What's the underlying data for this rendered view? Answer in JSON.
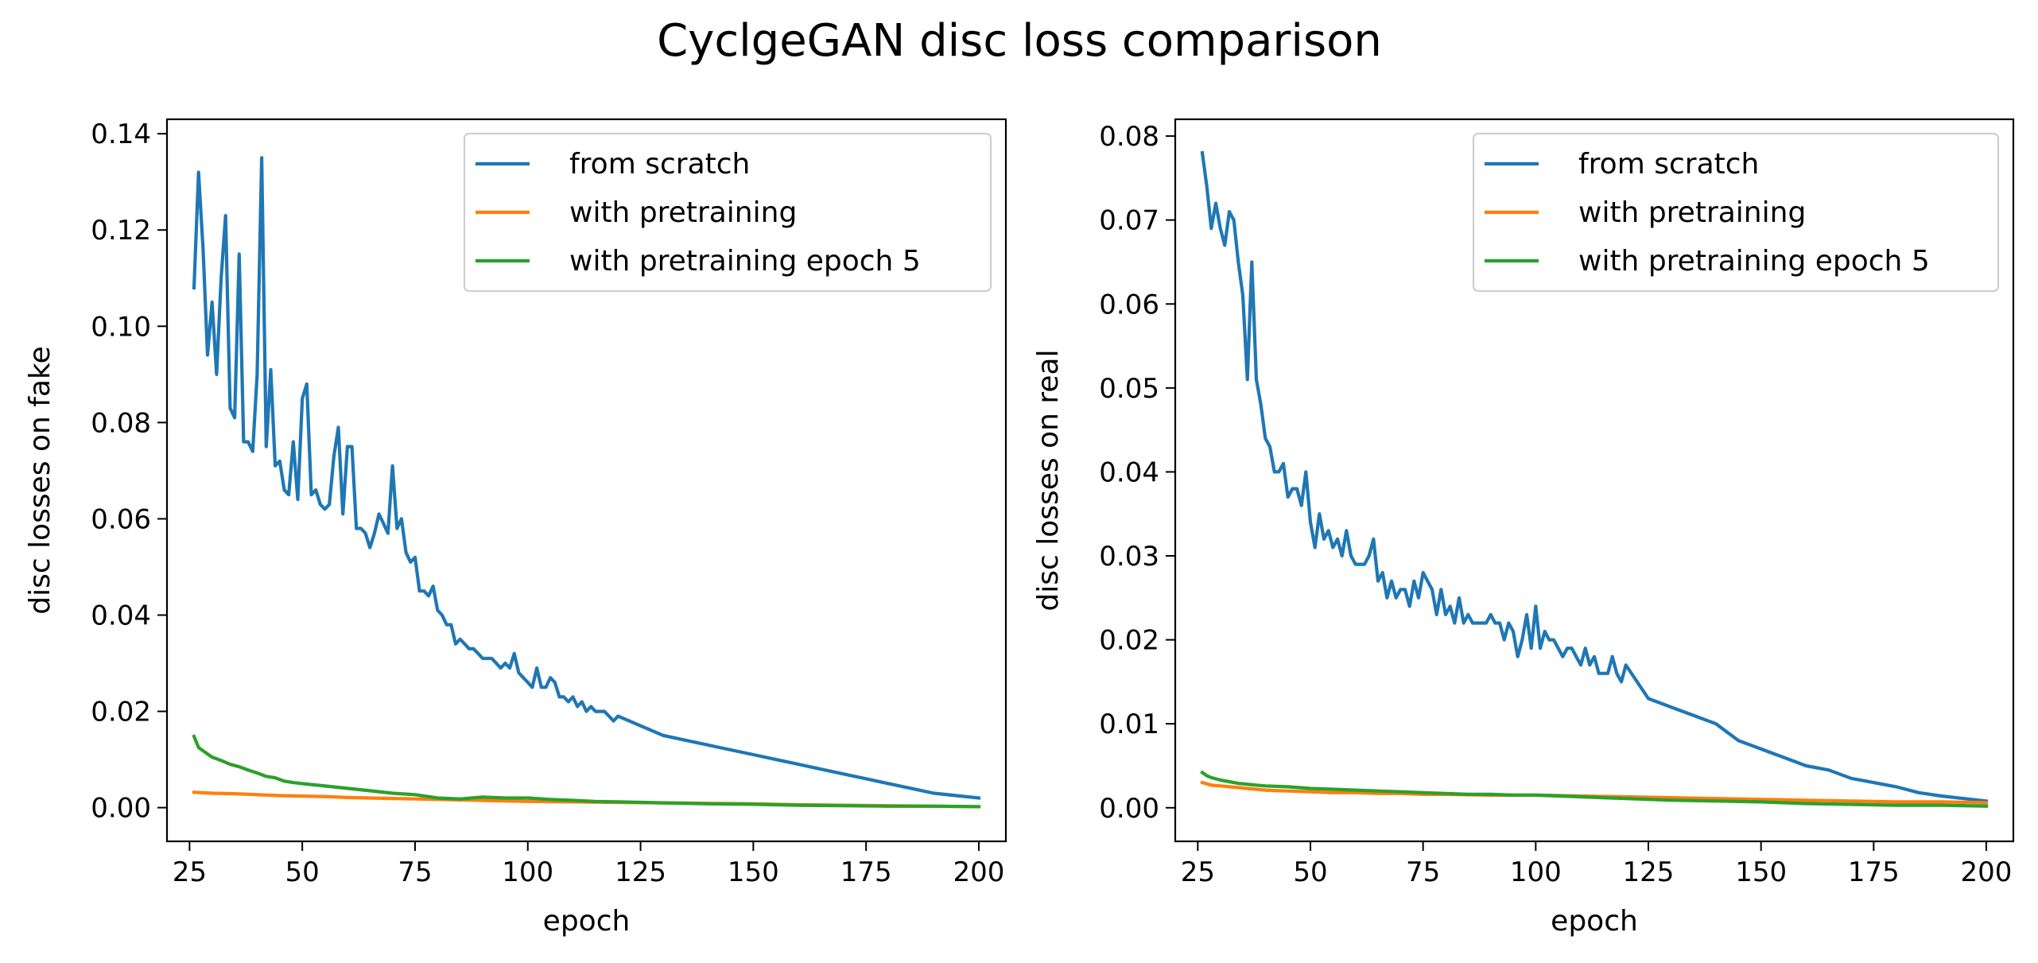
{
  "suptitle": "CyclgeGAN disc loss comparison",
  "chart_data": [
    {
      "type": "line",
      "title": "",
      "xlabel": "epoch",
      "ylabel": "disc losses on fake",
      "xlim": [
        20,
        206
      ],
      "ylim": [
        -0.007,
        0.143
      ],
      "xticks": [
        25,
        50,
        75,
        100,
        125,
        150,
        175,
        200
      ],
      "yticks": [
        0.0,
        0.02,
        0.04,
        0.06,
        0.08,
        0.1,
        0.12,
        0.14
      ],
      "ytick_labels": [
        "0.00",
        "0.02",
        "0.04",
        "0.06",
        "0.08",
        "0.10",
        "0.12",
        "0.14"
      ],
      "legend": "top-right",
      "grid": false,
      "series": [
        {
          "name": "from scratch",
          "color": "#1f77b4",
          "x": [
            26,
            27,
            28,
            29,
            30,
            31,
            32,
            33,
            34,
            35,
            36,
            37,
            38,
            39,
            40,
            41,
            42,
            43,
            44,
            45,
            46,
            47,
            48,
            49,
            50,
            51,
            52,
            53,
            54,
            55,
            56,
            57,
            58,
            59,
            60,
            61,
            62,
            63,
            64,
            65,
            66,
            67,
            68,
            69,
            70,
            71,
            72,
            73,
            74,
            75,
            76,
            77,
            78,
            79,
            80,
            81,
            82,
            83,
            84,
            85,
            86,
            87,
            88,
            89,
            90,
            91,
            92,
            93,
            94,
            95,
            96,
            97,
            98,
            99,
            100,
            101,
            102,
            103,
            104,
            105,
            106,
            107,
            108,
            109,
            110,
            111,
            112,
            113,
            114,
            115,
            116,
            117,
            118,
            119,
            120,
            125,
            130,
            135,
            140,
            145,
            150,
            155,
            160,
            165,
            170,
            175,
            180,
            185,
            190,
            195,
            200
          ],
          "y": [
            0.108,
            0.132,
            0.116,
            0.094,
            0.105,
            0.09,
            0.11,
            0.123,
            0.083,
            0.081,
            0.115,
            0.076,
            0.076,
            0.074,
            0.09,
            0.135,
            0.075,
            0.091,
            0.071,
            0.072,
            0.066,
            0.065,
            0.076,
            0.064,
            0.085,
            0.088,
            0.065,
            0.066,
            0.063,
            0.062,
            0.063,
            0.073,
            0.079,
            0.061,
            0.075,
            0.075,
            0.058,
            0.058,
            0.057,
            0.054,
            0.057,
            0.061,
            0.059,
            0.057,
            0.071,
            0.058,
            0.06,
            0.053,
            0.051,
            0.052,
            0.045,
            0.045,
            0.044,
            0.046,
            0.041,
            0.04,
            0.038,
            0.038,
            0.034,
            0.035,
            0.034,
            0.033,
            0.033,
            0.032,
            0.031,
            0.031,
            0.031,
            0.03,
            0.029,
            0.03,
            0.029,
            0.032,
            0.028,
            0.027,
            0.026,
            0.025,
            0.029,
            0.025,
            0.025,
            0.027,
            0.026,
            0.023,
            0.023,
            0.022,
            0.023,
            0.021,
            0.022,
            0.02,
            0.021,
            0.02,
            0.02,
            0.02,
            0.019,
            0.018,
            0.019,
            0.017,
            0.015,
            0.014,
            0.013,
            0.012,
            0.011,
            0.01,
            0.009,
            0.008,
            0.007,
            0.006,
            0.005,
            0.004,
            0.003,
            0.0025,
            0.002
          ]
        },
        {
          "name": "with pretraining",
          "color": "#ff7f0e",
          "x": [
            26,
            30,
            35,
            40,
            45,
            50,
            55,
            60,
            65,
            70,
            75,
            80,
            85,
            90,
            95,
            100,
            110,
            120,
            130,
            140,
            150,
            160,
            170,
            180,
            190,
            200
          ],
          "y": [
            0.0032,
            0.003,
            0.0029,
            0.0027,
            0.0025,
            0.0024,
            0.0023,
            0.0021,
            0.002,
            0.0019,
            0.0018,
            0.0017,
            0.0016,
            0.0015,
            0.0014,
            0.0013,
            0.0012,
            0.0011,
            0.001,
            0.0009,
            0.0008,
            0.0006,
            0.0005,
            0.0004,
            0.0003,
            0.0002
          ]
        },
        {
          "name": "with pretraining epoch 5",
          "color": "#2ca02c",
          "x": [
            26,
            27,
            28,
            30,
            32,
            34,
            36,
            38,
            40,
            42,
            44,
            46,
            48,
            50,
            55,
            60,
            65,
            70,
            75,
            80,
            85,
            90,
            95,
            100,
            105,
            110,
            115,
            120,
            130,
            140,
            150,
            160,
            170,
            180,
            190,
            200
          ],
          "y": [
            0.0148,
            0.0125,
            0.0118,
            0.0105,
            0.0098,
            0.009,
            0.0085,
            0.0078,
            0.0072,
            0.0065,
            0.0062,
            0.0055,
            0.0052,
            0.005,
            0.0045,
            0.004,
            0.0035,
            0.003,
            0.0027,
            0.002,
            0.0018,
            0.0022,
            0.002,
            0.002,
            0.0017,
            0.0015,
            0.0013,
            0.0012,
            0.001,
            0.0008,
            0.0007,
            0.0005,
            0.0004,
            0.0003,
            0.0003,
            0.0002
          ]
        }
      ]
    },
    {
      "type": "line",
      "title": "",
      "xlabel": "epoch",
      "ylabel": "disc losses on real",
      "xlim": [
        20,
        206
      ],
      "ylim": [
        -0.004,
        0.082
      ],
      "xticks": [
        25,
        50,
        75,
        100,
        125,
        150,
        175,
        200
      ],
      "yticks": [
        0.0,
        0.01,
        0.02,
        0.03,
        0.04,
        0.05,
        0.06,
        0.07,
        0.08
      ],
      "ytick_labels": [
        "0.00",
        "0.01",
        "0.02",
        "0.03",
        "0.04",
        "0.05",
        "0.06",
        "0.07",
        "0.08"
      ],
      "legend": "top-right",
      "grid": false,
      "series": [
        {
          "name": "from scratch",
          "color": "#1f77b4",
          "x": [
            26,
            27,
            28,
            29,
            30,
            31,
            32,
            33,
            34,
            35,
            36,
            37,
            38,
            39,
            40,
            41,
            42,
            43,
            44,
            45,
            46,
            47,
            48,
            49,
            50,
            51,
            52,
            53,
            54,
            55,
            56,
            57,
            58,
            59,
            60,
            61,
            62,
            63,
            64,
            65,
            66,
            67,
            68,
            69,
            70,
            71,
            72,
            73,
            74,
            75,
            76,
            77,
            78,
            79,
            80,
            81,
            82,
            83,
            84,
            85,
            86,
            87,
            88,
            89,
            90,
            91,
            92,
            93,
            94,
            95,
            96,
            97,
            98,
            99,
            100,
            101,
            102,
            103,
            104,
            105,
            106,
            107,
            108,
            109,
            110,
            111,
            112,
            113,
            114,
            115,
            116,
            117,
            118,
            119,
            120,
            125,
            130,
            135,
            140,
            145,
            150,
            155,
            160,
            165,
            170,
            175,
            180,
            185,
            190,
            195,
            200
          ],
          "y": [
            0.078,
            0.074,
            0.069,
            0.072,
            0.069,
            0.067,
            0.071,
            0.07,
            0.065,
            0.061,
            0.051,
            0.065,
            0.051,
            0.048,
            0.044,
            0.043,
            0.04,
            0.04,
            0.041,
            0.037,
            0.038,
            0.038,
            0.036,
            0.04,
            0.034,
            0.031,
            0.035,
            0.032,
            0.033,
            0.031,
            0.032,
            0.03,
            0.033,
            0.03,
            0.029,
            0.029,
            0.029,
            0.03,
            0.032,
            0.027,
            0.028,
            0.025,
            0.027,
            0.025,
            0.026,
            0.026,
            0.024,
            0.027,
            0.025,
            0.028,
            0.027,
            0.026,
            0.023,
            0.026,
            0.023,
            0.024,
            0.022,
            0.025,
            0.022,
            0.023,
            0.022,
            0.022,
            0.022,
            0.022,
            0.023,
            0.022,
            0.022,
            0.02,
            0.022,
            0.021,
            0.018,
            0.02,
            0.023,
            0.019,
            0.024,
            0.019,
            0.021,
            0.02,
            0.02,
            0.019,
            0.018,
            0.019,
            0.019,
            0.018,
            0.017,
            0.019,
            0.017,
            0.018,
            0.016,
            0.016,
            0.016,
            0.018,
            0.016,
            0.015,
            0.017,
            0.013,
            0.012,
            0.011,
            0.01,
            0.008,
            0.007,
            0.006,
            0.005,
            0.0045,
            0.0035,
            0.003,
            0.0025,
            0.0018,
            0.0014,
            0.0011,
            0.0008
          ]
        },
        {
          "name": "with pretraining",
          "color": "#ff7f0e",
          "x": [
            26,
            28,
            30,
            32,
            34,
            36,
            38,
            40,
            45,
            50,
            55,
            60,
            65,
            70,
            75,
            80,
            90,
            100,
            110,
            120,
            130,
            140,
            150,
            160,
            170,
            180,
            190,
            200
          ],
          "y": [
            0.003,
            0.0027,
            0.0026,
            0.0025,
            0.0024,
            0.0023,
            0.0022,
            0.0021,
            0.002,
            0.0019,
            0.0018,
            0.0018,
            0.0017,
            0.0017,
            0.0016,
            0.0016,
            0.0015,
            0.0015,
            0.0014,
            0.0013,
            0.0012,
            0.0011,
            0.001,
            0.0009,
            0.0008,
            0.0007,
            0.0007,
            0.0006
          ]
        },
        {
          "name": "with pretraining epoch 5",
          "color": "#2ca02c",
          "x": [
            26,
            27,
            28,
            30,
            32,
            34,
            36,
            38,
            40,
            45,
            50,
            55,
            60,
            65,
            70,
            75,
            80,
            85,
            90,
            95,
            100,
            110,
            120,
            130,
            140,
            150,
            160,
            170,
            180,
            190,
            200
          ],
          "y": [
            0.0042,
            0.0038,
            0.0036,
            0.0033,
            0.0031,
            0.0029,
            0.0028,
            0.0027,
            0.0026,
            0.0025,
            0.0023,
            0.0022,
            0.0021,
            0.002,
            0.0019,
            0.0018,
            0.0017,
            0.0016,
            0.0016,
            0.0015,
            0.0015,
            0.0013,
            0.0011,
            0.0009,
            0.0008,
            0.0007,
            0.0005,
            0.0004,
            0.0003,
            0.0003,
            0.0002
          ]
        }
      ]
    }
  ]
}
